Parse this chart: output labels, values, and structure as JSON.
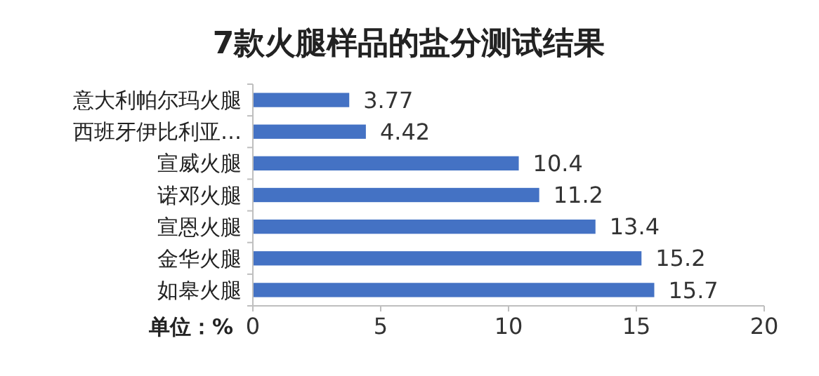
{
  "chart_data": {
    "type": "bar",
    "orientation": "horizontal",
    "title": "7款火腿样品的盐分测试结果",
    "categories": [
      "意大利帕尔玛火腿",
      "西班牙伊比利亚…",
      "宣威火腿",
      "诺邓火腿",
      "宣恩火腿",
      "金华火腿",
      "如皋火腿"
    ],
    "values": [
      3.77,
      4.42,
      10.4,
      11.2,
      13.4,
      15.2,
      15.7
    ],
    "color": "#4472c4",
    "xlim": [
      0,
      20
    ],
    "xticks": [
      0,
      5,
      10,
      15,
      20
    ],
    "data_labels": true,
    "annotations": [
      "单位：%"
    ]
  }
}
